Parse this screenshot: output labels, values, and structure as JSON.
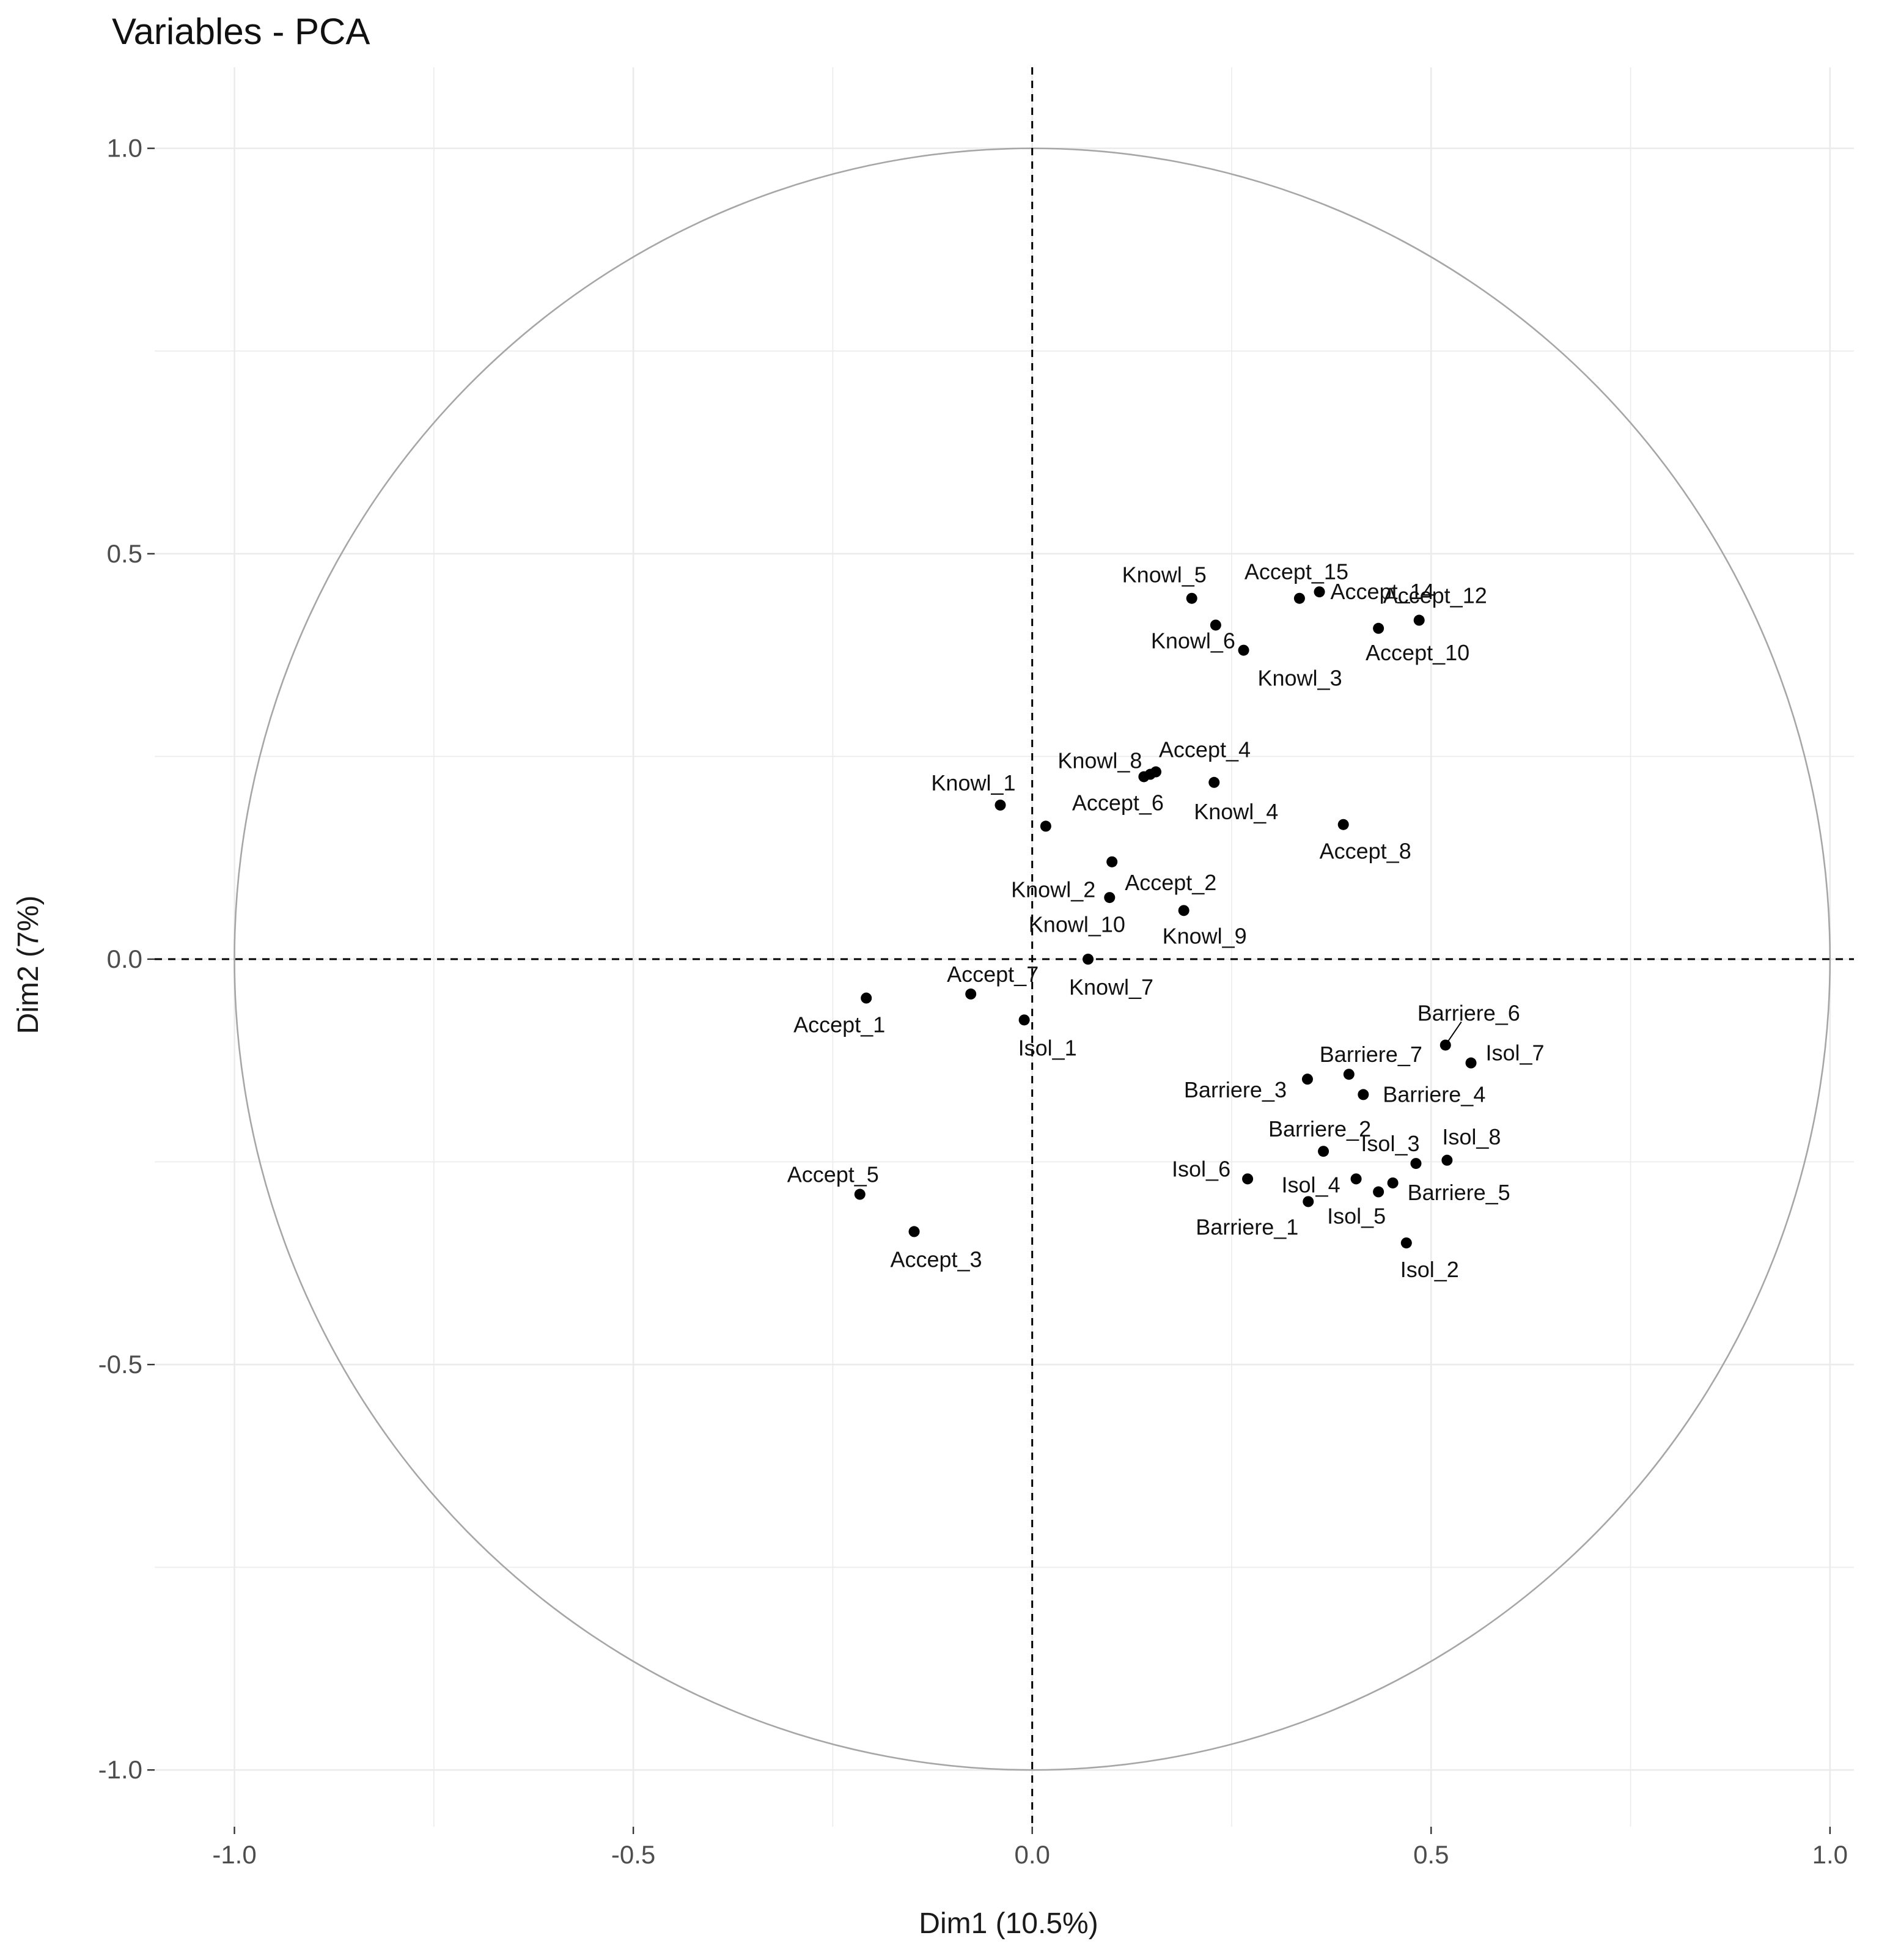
{
  "chart_data": {
    "type": "scatter",
    "title": "Variables - PCA",
    "xlabel": "Dim1 (10.5%)",
    "ylabel": "Dim2 (7%)",
    "xlim": [
      -1.1,
      1.03
    ],
    "ylim": [
      -1.07,
      1.1
    ],
    "xticks": [
      -1.0,
      -0.5,
      0.0,
      0.5,
      1.0
    ],
    "xtick_labels": [
      "-1.0",
      "-0.5",
      "0.0",
      "0.5",
      "1.0"
    ],
    "yticks": [
      -1.0,
      -0.5,
      0.0,
      0.5,
      1.0
    ],
    "ytick_labels": [
      "-1.0",
      "-0.5",
      "0.0",
      "0.5",
      "1.0"
    ],
    "grid": true,
    "unit_circle": true,
    "reference_lines": [
      {
        "axis": "x",
        "value": 0,
        "style": "dashed"
      },
      {
        "axis": "y",
        "value": 0,
        "style": "dashed"
      }
    ],
    "points": [
      {
        "name": "Knowl_5",
        "x": 0.2,
        "y": 0.445
      },
      {
        "name": "Accept_15",
        "x": 0.335,
        "y": 0.445
      },
      {
        "name": "Accept_12",
        "x": 0.485,
        "y": 0.418
      },
      {
        "name": "Knowl_6",
        "x": 0.23,
        "y": 0.412
      },
      {
        "name": "Accept_14",
        "x": 0.36,
        "y": 0.453
      },
      {
        "name": "Accept_10",
        "x": 0.434,
        "y": 0.408
      },
      {
        "name": "Knowl_3",
        "x": 0.265,
        "y": 0.381
      },
      {
        "name": "Knowl_8",
        "x": 0.14,
        "y": 0.225
      },
      {
        "name": "Accept_4",
        "x": 0.155,
        "y": 0.231
      },
      {
        "name": "Knowl_4",
        "x": 0.228,
        "y": 0.218
      },
      {
        "name": "Knowl_1",
        "x": -0.04,
        "y": 0.19
      },
      {
        "name": "Accept_6",
        "x": 0.017,
        "y": 0.164
      },
      {
        "name": "Accept_8",
        "x": 0.39,
        "y": 0.166
      },
      {
        "name": "Knowl_2",
        "x": 0.1,
        "y": 0.12
      },
      {
        "name": "Accept_2",
        "x": 0.097,
        "y": 0.076
      },
      {
        "name": "Knowl_9",
        "x": 0.19,
        "y": 0.06
      },
      {
        "name": "Knowl_10",
        "x": 0.148,
        "y": 0.228
      },
      {
        "name": "Knowl_7",
        "x": 0.07,
        "y": 0.0
      },
      {
        "name": "Accept_7",
        "x": -0.077,
        "y": -0.043
      },
      {
        "name": "Accept_1",
        "x": -0.208,
        "y": -0.048
      },
      {
        "name": "Isol_1",
        "x": -0.01,
        "y": -0.075
      },
      {
        "name": "Barriere_6",
        "x": 0.518,
        "y": -0.106
      },
      {
        "name": "Isol_7",
        "x": 0.55,
        "y": -0.128
      },
      {
        "name": "Barriere_7",
        "x": 0.397,
        "y": -0.142
      },
      {
        "name": "Barriere_3",
        "x": 0.345,
        "y": -0.148
      },
      {
        "name": "Barriere_4",
        "x": 0.415,
        "y": -0.167
      },
      {
        "name": "Barriere_2",
        "x": 0.365,
        "y": -0.237
      },
      {
        "name": "Isol_3",
        "x": 0.481,
        "y": -0.252
      },
      {
        "name": "Isol_8",
        "x": 0.52,
        "y": -0.248
      },
      {
        "name": "Isol_6",
        "x": 0.27,
        "y": -0.271
      },
      {
        "name": "Isol_4",
        "x": 0.406,
        "y": -0.271
      },
      {
        "name": "Barriere_5",
        "x": 0.452,
        "y": -0.276
      },
      {
        "name": "Isol_5",
        "x": 0.434,
        "y": -0.287
      },
      {
        "name": "Barriere_1",
        "x": 0.346,
        "y": -0.299
      },
      {
        "name": "Isol_2",
        "x": 0.469,
        "y": -0.35
      },
      {
        "name": "Accept_5",
        "x": -0.216,
        "y": -0.29
      },
      {
        "name": "Accept_3",
        "x": -0.148,
        "y": -0.336
      }
    ]
  }
}
